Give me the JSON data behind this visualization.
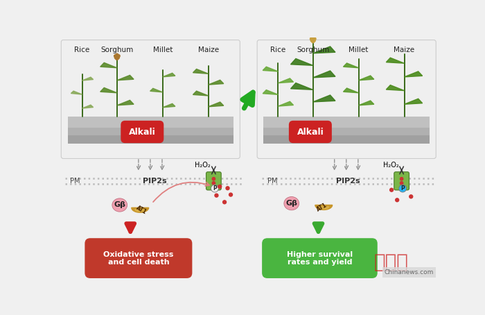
{
  "bg_color": "#f0f0f0",
  "panel_bg_left": "#eeeeee",
  "panel_bg_right": "#eeeeee",
  "soil_top": "#c8c8c8",
  "soil_mid": "#b8b8b8",
  "soil_dark": "#a0a0a0",
  "alkali_color": "#cc2222",
  "red_box_color": "#c0392b",
  "green_box_color": "#4ab540",
  "green_arrow_color": "#3aaa30",
  "red_arrow_color": "#cc2222",
  "membrane_color": "#b0b0b0",
  "channel_color": "#7ab648",
  "channel_edge": "#5a8a30",
  "p_left_color": "#e8e8e8",
  "p_right_color": "#29b6f6",
  "gb_color": "#f4a0b0",
  "at1_color": "#c8962a",
  "ros_color": "#cc3333",
  "dashed_color": "#888888",
  "text_color": "#222222",
  "crop_labels": [
    "Rice",
    "Sorghum",
    "Millet",
    "Maize"
  ],
  "left_result": "Oxidative stress\nand cell death",
  "right_result": "Higher survival\nrates and yield",
  "h2o2": "H₂O₂",
  "pm_label": "PM",
  "pip2s": "PIP2s",
  "p_label": "P",
  "gb_label": "Gβ",
  "at1_label": "AT1",
  "chinanews": "Chinanews.com",
  "zhongxinwang": "中新网",
  "alkali_label": "Alkali",
  "big_arrow_color": "#22aa22"
}
